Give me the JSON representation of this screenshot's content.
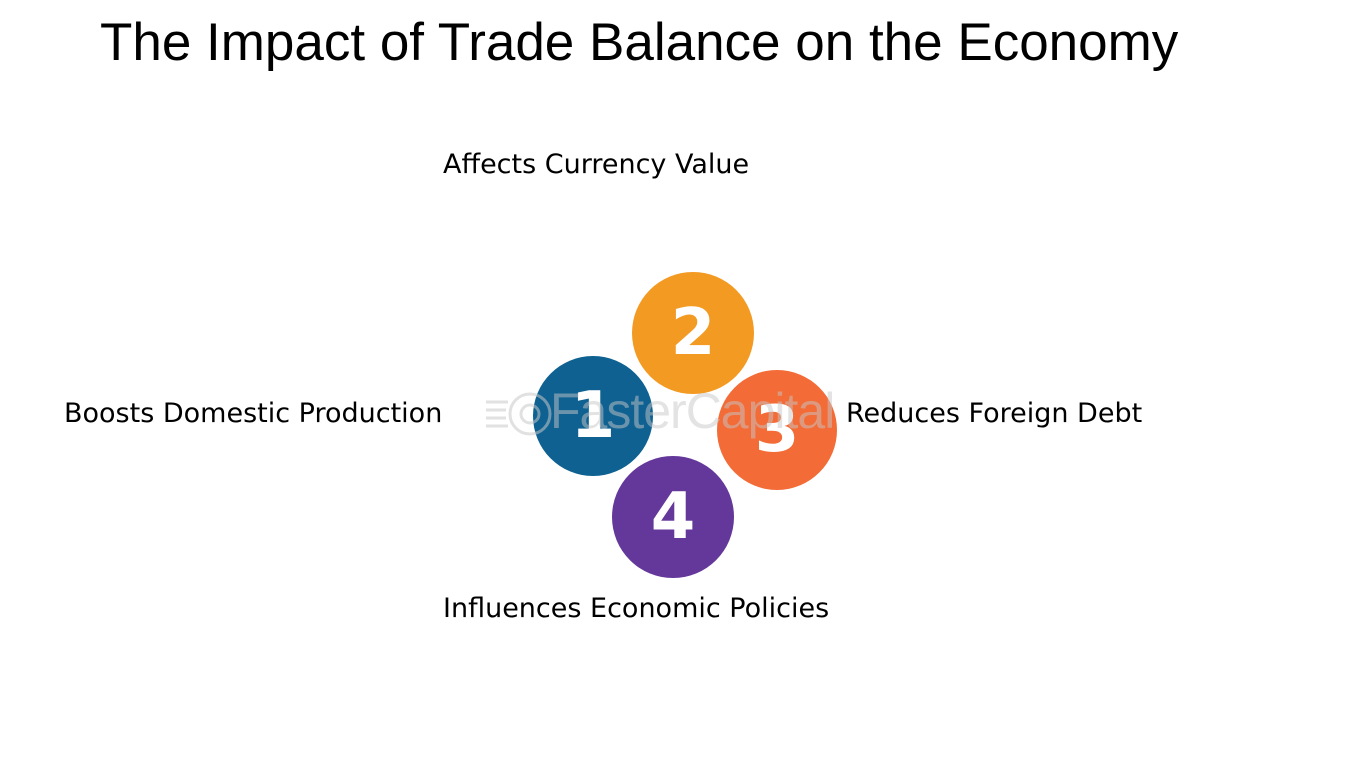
{
  "title": "The Impact of Trade Balance on the Economy",
  "items": [
    {
      "number": "1",
      "label": "Boosts Domestic Production",
      "color": "#0e6191"
    },
    {
      "number": "2",
      "label": "Affects Currency Value",
      "color": "#f39a23"
    },
    {
      "number": "3",
      "label": "Reduces Foreign Debt",
      "color": "#f36b36"
    },
    {
      "number": "4",
      "label": "Influences Economic Policies",
      "color": "#64379a"
    }
  ],
  "watermark": {
    "text": "FasterCapital"
  }
}
